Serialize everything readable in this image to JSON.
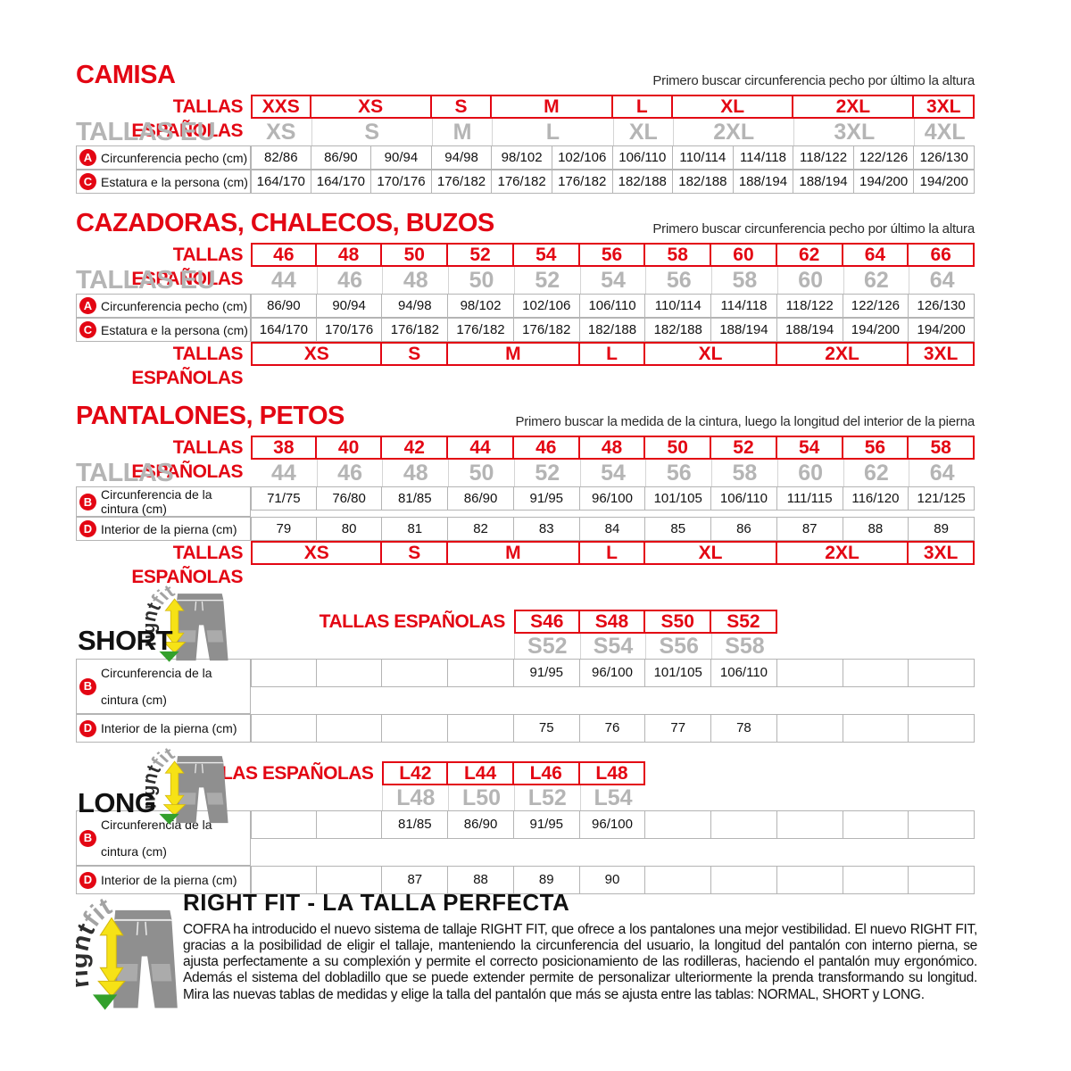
{
  "colors": {
    "red": "#e30613",
    "gray": "#b5b5b5"
  },
  "camisa": {
    "title": "CAMISA",
    "note": "Primero buscar circunferencia pecho por último la altura",
    "es_label": "TALLAS ESPAÑOLAS",
    "eu_label": "TALLAS EU",
    "es_sizes": [
      {
        "label": "XXS",
        "span": 1
      },
      {
        "label": "XS",
        "span": 2
      },
      {
        "label": "S",
        "span": 1
      },
      {
        "label": "M",
        "span": 2
      },
      {
        "label": "L",
        "span": 1
      },
      {
        "label": "XL",
        "span": 2
      },
      {
        "label": "2XL",
        "span": 2
      },
      {
        "label": "3XL",
        "span": 1
      }
    ],
    "eu_sizes": [
      {
        "label": "XS",
        "span": 1
      },
      {
        "label": "S",
        "span": 2
      },
      {
        "label": "M",
        "span": 1
      },
      {
        "label": "L",
        "span": 2
      },
      {
        "label": "XL",
        "span": 1
      },
      {
        "label": "2XL",
        "span": 2
      },
      {
        "label": "3XL",
        "span": 2
      },
      {
        "label": "4XL",
        "span": 1
      }
    ],
    "rows": [
      {
        "icon": "A",
        "label": "Circunferencia pecho (cm)",
        "values": [
          "82/86",
          "86/90",
          "90/94",
          "94/98",
          "98/102",
          "102/106",
          "106/110",
          "110/114",
          "114/118",
          "118/122",
          "122/126",
          "126/130"
        ]
      },
      {
        "icon": "C",
        "label": "Estatura e la persona (cm)",
        "values": [
          "164/170",
          "164/170",
          "170/176",
          "176/182",
          "176/182",
          "176/182",
          "182/188",
          "182/188",
          "188/194",
          "188/194",
          "194/200",
          "194/200"
        ]
      }
    ]
  },
  "cazadoras": {
    "title": "CAZADORAS, CHALECOS, BUZOS",
    "note": "Primero buscar circunferencia pecho por último la altura",
    "es_label": "TALLAS ESPAÑOLAS",
    "eu_label": "TALLAS EU",
    "es_sizes": [
      "46",
      "48",
      "50",
      "52",
      "54",
      "56",
      "58",
      "60",
      "62",
      "64",
      "66"
    ],
    "eu_sizes": [
      "44",
      "46",
      "48",
      "50",
      "52",
      "54",
      "56",
      "58",
      "60",
      "62",
      "64"
    ],
    "rows": [
      {
        "icon": "A",
        "label": "Circunferencia pecho (cm)",
        "values": [
          "86/90",
          "90/94",
          "94/98",
          "98/102",
          "102/106",
          "106/110",
          "110/114",
          "114/118",
          "118/122",
          "122/126",
          "126/130"
        ]
      },
      {
        "icon": "C",
        "label": "Estatura e la persona (cm)",
        "values": [
          "164/170",
          "170/176",
          "176/182",
          "176/182",
          "176/182",
          "182/188",
          "182/188",
          "188/194",
          "188/194",
          "194/200",
          "194/200"
        ]
      }
    ],
    "bottom_label": "TALLAS ESPAÑOLAS",
    "bottom_sizes": [
      {
        "label": "XS",
        "span": 2
      },
      {
        "label": "S",
        "span": 1
      },
      {
        "label": "M",
        "span": 2
      },
      {
        "label": "L",
        "span": 1
      },
      {
        "label": "XL",
        "span": 2
      },
      {
        "label": "2XL",
        "span": 2
      },
      {
        "label": "3XL",
        "span": 1
      }
    ]
  },
  "pantalones": {
    "title": "PANTALONES, PETOS",
    "note": "Primero buscar la medida de la cintura, luego la longitud del interior de la pierna",
    "es_label": "TALLAS ESPAÑOLAS",
    "eu_label": "TALLAS",
    "es_sizes": [
      "38",
      "40",
      "42",
      "44",
      "46",
      "48",
      "50",
      "52",
      "54",
      "56",
      "58"
    ],
    "eu_sizes": [
      "44",
      "46",
      "48",
      "50",
      "52",
      "54",
      "56",
      "58",
      "60",
      "62",
      "64"
    ],
    "rows": [
      {
        "icon": "B",
        "label": "Circunferencia de la cintura (cm)",
        "values": [
          "71/75",
          "76/80",
          "81/85",
          "86/90",
          "91/95",
          "96/100",
          "101/105",
          "106/110",
          "111/115",
          "116/120",
          "121/125"
        ]
      },
      {
        "icon": "D",
        "label": "Interior de la pierna (cm)",
        "values": [
          "79",
          "80",
          "81",
          "82",
          "83",
          "84",
          "85",
          "86",
          "87",
          "88",
          "89"
        ]
      }
    ],
    "bottom_label": "TALLAS ESPAÑOLAS",
    "bottom_sizes": [
      {
        "label": "XS",
        "span": 2
      },
      {
        "label": "S",
        "span": 1
      },
      {
        "label": "M",
        "span": 2
      },
      {
        "label": "L",
        "span": 1
      },
      {
        "label": "XL",
        "span": 2
      },
      {
        "label": "2XL",
        "span": 2
      },
      {
        "label": "3XL",
        "span": 1
      }
    ]
  },
  "short": {
    "title": "SHORT",
    "es_label": "TALLAS ESPAÑOLAS",
    "es_sizes": [
      "S46",
      "S48",
      "S50",
      "S52"
    ],
    "eu_sizes": [
      "S52",
      "S54",
      "S56",
      "S58"
    ],
    "rows": [
      {
        "icon": "B",
        "label": "Circunferencia de la cintura (cm)",
        "values": [
          "",
          "",
          "",
          "",
          "91/95",
          "96/100",
          "101/105",
          "106/110",
          "",
          "",
          ""
        ]
      },
      {
        "icon": "D",
        "label": "Interior de la pierna (cm)",
        "values": [
          "",
          "",
          "",
          "",
          "75",
          "76",
          "77",
          "78",
          "",
          "",
          ""
        ]
      }
    ]
  },
  "long": {
    "title": "LONG",
    "es_label": "TALLAS ESPAÑOLAS",
    "es_sizes": [
      "L42",
      "L44",
      "L46",
      "L48"
    ],
    "eu_sizes": [
      "L48",
      "L50",
      "L52",
      "L54"
    ],
    "rows": [
      {
        "icon": "B",
        "label": "Circunferencia de la cintura (cm)",
        "values": [
          "",
          "",
          "81/85",
          "86/90",
          "91/95",
          "96/100",
          "",
          "",
          "",
          "",
          ""
        ]
      },
      {
        "icon": "D",
        "label": "Interior de la pierna (cm)",
        "values": [
          "",
          "",
          "87",
          "88",
          "89",
          "90",
          "",
          "",
          "",
          "",
          ""
        ]
      }
    ]
  },
  "rightfit": {
    "logo_right": "right",
    "logo_fit": "fit",
    "title": "RIGHT FIT - LA TALLA PERFECTA",
    "paragraph": "COFRA ha introducido el nuevo sistema de tallaje RIGHT FIT, que ofrece a los pantalones una mejor vestibilidad. El nuevo RIGHT FIT, gracias a la posibilidad de eligir el tallaje, manteniendo la circunferencia del usuario, la longitud del pantalón con interno pierna, se ajusta perfectamente a su complexión y permite el correcto posicionamiento de las rodilleras, haciendo el pantalón muy ergonómico. Además el sistema del dobladillo que se puede extender permite de personalizar ulteriormente la prenda transformando su longitud. Mira las nuevas tablas de medidas y elige la talla del pantalón que más se ajusta entre las tablas: NORMAL, SHORT y LONG."
  }
}
